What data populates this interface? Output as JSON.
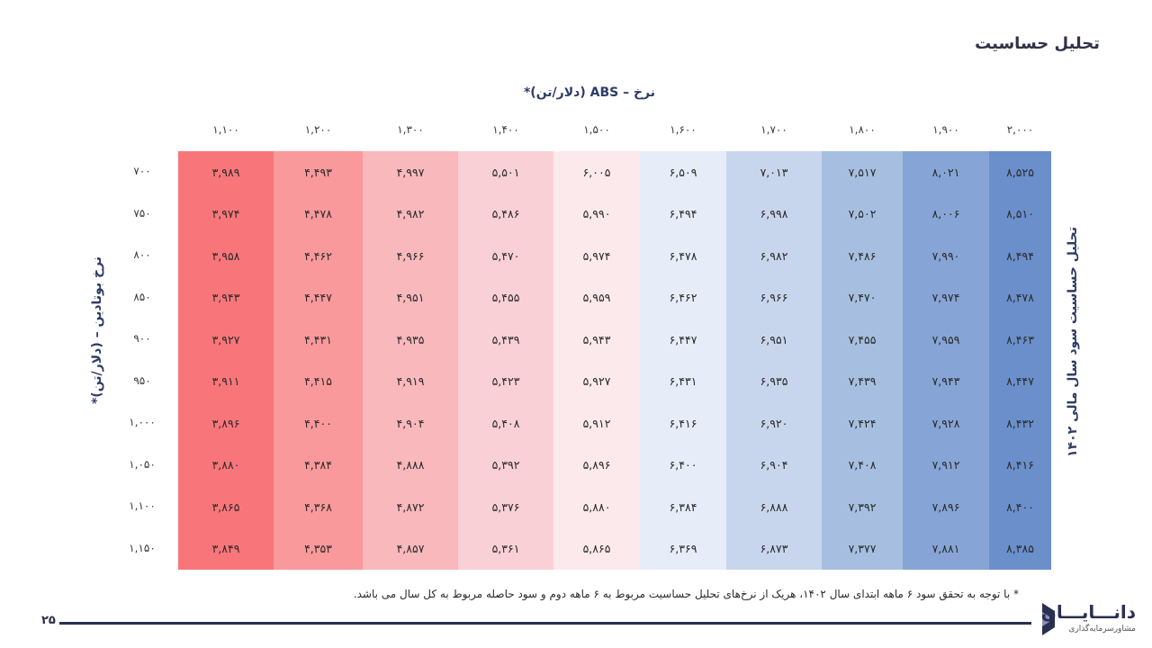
{
  "title": "تحلیل حساسیت",
  "top_axis_label": "نرخ – ABS (دلار/تن)*",
  "left_axis_label": "نرخ بوتادین – (دلار/تن)*",
  "right_axis_label": "تحلیل حساسیت سود سال مالی ۱۴۰۲",
  "column_headers": [
    "۱,۱۰۰",
    "۱,۲۰۰",
    "۱,۳۰۰",
    "۱,۴۰۰",
    "۱,۵۰۰",
    "۱,۶۰۰",
    "۱,۷۰۰",
    "۱,۸۰۰",
    "۱,۹۰۰",
    "۲,۰۰۰"
  ],
  "row_headers": [
    "۷۰۰",
    "۷۵۰",
    "۸۰۰",
    "۸۵۰",
    "۹۰۰",
    "۹۵۰",
    "۱,۰۰۰",
    "۱,۰۵۰",
    "۱,۱۰۰",
    "۱,۱۵۰"
  ],
  "column_colors": [
    "#f8767a",
    "#f9999b",
    "#f8b8bc",
    "#f9d0d6",
    "#fce9ec",
    "#e6ecf8",
    "#c8d6ed",
    "#a6bfe0",
    "#86a5d6",
    "#6a8fcb"
  ],
  "table": [
    [
      "۳,۹۸۹",
      "۴,۴۹۳",
      "۴,۹۹۷",
      "۵,۵۰۱",
      "۶,۰۰۵",
      "۶,۵۰۹",
      "۷,۰۱۳",
      "۷,۵۱۷",
      "۸,۰۲۱",
      "۸,۵۲۵"
    ],
    [
      "۳,۹۷۴",
      "۴,۴۷۸",
      "۴,۹۸۲",
      "۵,۴۸۶",
      "۵,۹۹۰",
      "۶,۴۹۴",
      "۶,۹۹۸",
      "۷,۵۰۲",
      "۸,۰۰۶",
      "۸,۵۱۰"
    ],
    [
      "۳,۹۵۸",
      "۴,۴۶۲",
      "۴,۹۶۶",
      "۵,۴۷۰",
      "۵,۹۷۴",
      "۶,۴۷۸",
      "۶,۹۸۲",
      "۷,۴۸۶",
      "۷,۹۹۰",
      "۸,۴۹۴"
    ],
    [
      "۳,۹۴۳",
      "۴,۴۴۷",
      "۴,۹۵۱",
      "۵,۴۵۵",
      "۵,۹۵۹",
      "۶,۴۶۲",
      "۶,۹۶۶",
      "۷,۴۷۰",
      "۷,۹۷۴",
      "۸,۴۷۸"
    ],
    [
      "۳,۹۲۷",
      "۴,۴۳۱",
      "۴,۹۳۵",
      "۵,۴۳۹",
      "۵,۹۴۳",
      "۶,۴۴۷",
      "۶,۹۵۱",
      "۷,۴۵۵",
      "۷,۹۵۹",
      "۸,۴۶۳"
    ],
    [
      "۳,۹۱۱",
      "۴,۴۱۵",
      "۴,۹۱۹",
      "۵,۴۲۳",
      "۵,۹۲۷",
      "۶,۴۳۱",
      "۶,۹۳۵",
      "۷,۴۳۹",
      "۷,۹۴۳",
      "۸,۴۴۷"
    ],
    [
      "۳,۸۹۶",
      "۴,۴۰۰",
      "۴,۹۰۴",
      "۵,۴۰۸",
      "۵,۹۱۲",
      "۶,۴۱۶",
      "۶,۹۲۰",
      "۷,۴۲۴",
      "۷,۹۲۸",
      "۸,۴۳۲"
    ],
    [
      "۳,۸۸۰",
      "۴,۳۸۴",
      "۴,۸۸۸",
      "۵,۳۹۲",
      "۵,۸۹۶",
      "۶,۴۰۰",
      "۶,۹۰۴",
      "۷,۴۰۸",
      "۷,۹۱۲",
      "۸,۴۱۶"
    ],
    [
      "۳,۸۶۵",
      "۴,۳۶۸",
      "۴,۸۷۲",
      "۵,۳۷۶",
      "۵,۸۸۰",
      "۶,۳۸۴",
      "۶,۸۸۸",
      "۷,۳۹۲",
      "۷,۸۹۶",
      "۸,۴۰۰"
    ],
    [
      "۳,۸۴۹",
      "۴,۳۵۳",
      "۴,۸۵۷",
      "۵,۳۶۱",
      "۵,۸۶۵",
      "۶,۳۶۹",
      "۶,۸۷۳",
      "۷,۳۷۷",
      "۷,۸۸۱",
      "۸,۳۸۵"
    ]
  ],
  "footnote": "* با توجه به تحقق سود ۶ ماهه ابتدای سال ۱۴۰۲، هریک از نرخ‌های تحلیل حساسیت مربوط به ۶ ماهه دوم و سود حاصله مربوط به کل سال می باشد.",
  "page_number": "۲۵",
  "logo": {
    "name": "دانـــایـــان",
    "tagline": "مشاورسرمایه‌گذاری"
  }
}
